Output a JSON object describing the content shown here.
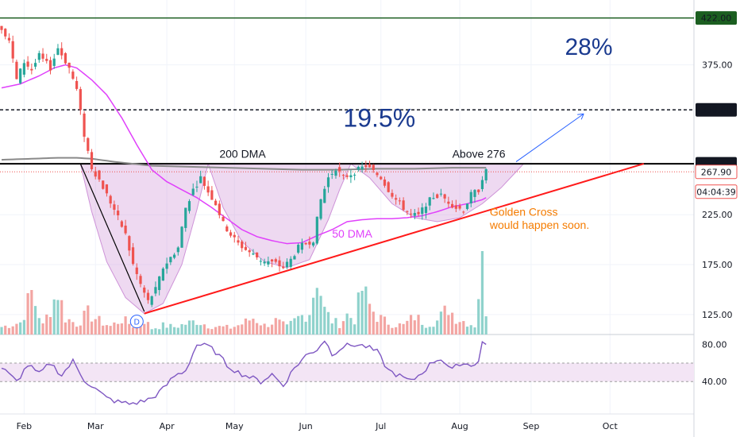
{
  "chart_data": {
    "type": "candlestick",
    "price_axis": {
      "ylim": [
        105,
        440
      ],
      "ticks": [
        125,
        175,
        225,
        375
      ],
      "tick_labels": [
        "125.00",
        "175.00",
        "225.00",
        "375.00"
      ]
    },
    "rsi_axis": {
      "ylim": [
        5,
        90
      ],
      "ticks": [
        40,
        80
      ],
      "tick_labels": [
        "40.00",
        "80.00"
      ],
      "band": [
        40,
        60
      ]
    },
    "x_axis": {
      "labels": [
        {
          "text": "Feb",
          "bar": 6
        },
        {
          "text": "Mar",
          "bar": 25
        },
        {
          "text": "Apr",
          "bar": 44
        },
        {
          "text": "May",
          "bar": 62
        },
        {
          "text": "Jun",
          "bar": 81
        },
        {
          "text": "Jul",
          "bar": 101
        },
        {
          "text": "Aug",
          "bar": 122
        },
        {
          "text": "Sep",
          "bar": 141
        },
        {
          "text": "Oct",
          "bar": 162
        }
      ],
      "total_bars": 185,
      "last_bar": 129
    },
    "price_anchors": [
      [
        0,
        412
      ],
      [
        2,
        400
      ],
      [
        4,
        360
      ],
      [
        6,
        378
      ],
      [
        8,
        370
      ],
      [
        10,
        384
      ],
      [
        13,
        372
      ],
      [
        15,
        392
      ],
      [
        18,
        372
      ],
      [
        20,
        350
      ],
      [
        22,
        305
      ],
      [
        24,
        272
      ],
      [
        26,
        260
      ],
      [
        28,
        245
      ],
      [
        30,
        230
      ],
      [
        33,
        205
      ],
      [
        35,
        175
      ],
      [
        37,
        155
      ],
      [
        39,
        138
      ],
      [
        41,
        150
      ],
      [
        43,
        172
      ],
      [
        45,
        182
      ],
      [
        47,
        192
      ],
      [
        49,
        232
      ],
      [
        51,
        250
      ],
      [
        53,
        262
      ],
      [
        55,
        248
      ],
      [
        57,
        236
      ],
      [
        59,
        216
      ],
      [
        61,
        205
      ],
      [
        63,
        196
      ],
      [
        65,
        190
      ],
      [
        67,
        185
      ],
      [
        69,
        180
      ],
      [
        71,
        178
      ],
      [
        73,
        176
      ],
      [
        75,
        172
      ],
      [
        77,
        180
      ],
      [
        79,
        192
      ],
      [
        81,
        196
      ],
      [
        83,
        200
      ],
      [
        85,
        240
      ],
      [
        87,
        262
      ],
      [
        89,
        272
      ],
      [
        91,
        262
      ],
      [
        93,
        266
      ],
      [
        95,
        270
      ],
      [
        97,
        274
      ],
      [
        99,
        268
      ],
      [
        101,
        262
      ],
      [
        103,
        250
      ],
      [
        105,
        240
      ],
      [
        107,
        232
      ],
      [
        109,
        225
      ],
      [
        111,
        224
      ],
      [
        113,
        236
      ],
      [
        115,
        243
      ],
      [
        117,
        244
      ],
      [
        119,
        238
      ],
      [
        121,
        232
      ],
      [
        123,
        230
      ],
      [
        125,
        245
      ],
      [
        127,
        250
      ],
      [
        128,
        262
      ],
      [
        129,
        268
      ]
    ],
    "volume_anchors": [
      [
        0,
        10
      ],
      [
        5,
        16
      ],
      [
        8,
        55
      ],
      [
        11,
        12
      ],
      [
        15,
        58
      ],
      [
        17,
        22
      ],
      [
        20,
        14
      ],
      [
        23,
        28
      ],
      [
        26,
        18
      ],
      [
        29,
        11
      ],
      [
        32,
        20
      ],
      [
        35,
        12
      ],
      [
        37,
        25
      ],
      [
        40,
        8
      ],
      [
        43,
        12
      ],
      [
        46,
        10
      ],
      [
        49,
        14
      ],
      [
        52,
        18
      ],
      [
        55,
        12
      ],
      [
        58,
        10
      ],
      [
        61,
        9
      ],
      [
        64,
        14
      ],
      [
        67,
        22
      ],
      [
        70,
        12
      ],
      [
        73,
        18
      ],
      [
        76,
        10
      ],
      [
        79,
        22
      ],
      [
        82,
        30
      ],
      [
        84,
        80
      ],
      [
        86,
        32
      ],
      [
        88,
        18
      ],
      [
        90,
        14
      ],
      [
        92,
        26
      ],
      [
        94,
        20
      ],
      [
        96,
        60
      ],
      [
        98,
        38
      ],
      [
        100,
        24
      ],
      [
        102,
        18
      ],
      [
        104,
        14
      ],
      [
        107,
        12
      ],
      [
        110,
        24
      ],
      [
        113,
        14
      ],
      [
        116,
        18
      ],
      [
        119,
        36
      ],
      [
        121,
        22
      ],
      [
        124,
        16
      ],
      [
        126,
        12
      ],
      [
        128,
        100
      ],
      [
        129,
        34
      ]
    ],
    "rsi_anchors": [
      [
        0,
        55
      ],
      [
        4,
        40
      ],
      [
        7,
        58
      ],
      [
        10,
        48
      ],
      [
        13,
        60
      ],
      [
        16,
        47
      ],
      [
        19,
        62
      ],
      [
        22,
        42
      ],
      [
        25,
        32
      ],
      [
        28,
        22
      ],
      [
        31,
        18
      ],
      [
        34,
        16
      ],
      [
        37,
        18
      ],
      [
        40,
        22
      ],
      [
        43,
        32
      ],
      [
        46,
        46
      ],
      [
        49,
        52
      ],
      [
        52,
        80
      ],
      [
        55,
        78
      ],
      [
        57,
        72
      ],
      [
        60,
        58
      ],
      [
        63,
        50
      ],
      [
        66,
        45
      ],
      [
        69,
        40
      ],
      [
        72,
        48
      ],
      [
        75,
        36
      ],
      [
        78,
        55
      ],
      [
        81,
        68
      ],
      [
        84,
        75
      ],
      [
        86,
        85
      ],
      [
        88,
        70
      ],
      [
        91,
        78
      ],
      [
        94,
        80
      ],
      [
        97,
        78
      ],
      [
        100,
        72
      ],
      [
        103,
        52
      ],
      [
        106,
        46
      ],
      [
        109,
        40
      ],
      [
        112,
        50
      ],
      [
        115,
        62
      ],
      [
        117,
        65
      ],
      [
        120,
        52
      ],
      [
        122,
        60
      ],
      [
        125,
        58
      ],
      [
        127,
        62
      ],
      [
        128,
        82
      ],
      [
        129,
        80
      ]
    ],
    "ma50_anchors": [
      [
        0,
        352
      ],
      [
        5,
        356
      ],
      [
        10,
        364
      ],
      [
        14,
        372
      ],
      [
        17,
        375
      ],
      [
        20,
        372
      ],
      [
        24,
        360
      ],
      [
        28,
        345
      ],
      [
        32,
        322
      ],
      [
        36,
        295
      ],
      [
        40,
        270
      ],
      [
        44,
        258
      ],
      [
        48,
        250
      ],
      [
        52,
        242
      ],
      [
        56,
        232
      ],
      [
        60,
        221
      ],
      [
        64,
        210
      ],
      [
        68,
        203
      ],
      [
        72,
        199
      ],
      [
        76,
        196
      ],
      [
        80,
        197
      ],
      [
        84,
        204
      ],
      [
        88,
        210
      ],
      [
        92,
        218
      ],
      [
        96,
        220
      ],
      [
        100,
        221
      ],
      [
        104,
        221
      ],
      [
        108,
        222
      ],
      [
        112,
        224
      ],
      [
        116,
        228
      ],
      [
        120,
        233
      ],
      [
        124,
        236
      ],
      [
        128,
        240
      ],
      [
        129,
        242
      ]
    ],
    "ma200_anchors": [
      [
        0,
        280
      ],
      [
        8,
        281
      ],
      [
        15,
        282
      ],
      [
        20,
        282
      ],
      [
        24,
        281
      ],
      [
        30,
        278
      ],
      [
        40,
        274
      ],
      [
        50,
        273
      ],
      [
        60,
        272
      ],
      [
        70,
        271
      ],
      [
        80,
        270
      ],
      [
        90,
        270
      ],
      [
        100,
        271
      ],
      [
        110,
        271
      ],
      [
        120,
        272
      ],
      [
        129,
        272
      ]
    ],
    "price_labels": [
      {
        "value": 422,
        "text": "422.00",
        "style": "green"
      },
      {
        "value": 330,
        "text": "330.00",
        "style": "dark"
      },
      {
        "value": 276,
        "text": "276.00",
        "style": "dark"
      },
      {
        "value": 267.9,
        "text": "267.90",
        "style": "red-outline"
      },
      {
        "value": 248,
        "text": "04:04:39",
        "style": "red-outline"
      }
    ],
    "levels": [
      {
        "value": 422,
        "color": "#1b5e20",
        "dash": false
      },
      {
        "value": 330,
        "color": "#131722",
        "dash": true
      },
      {
        "value": 276,
        "color": "#000000",
        "dash": false
      }
    ],
    "annotations": {
      "target_pct_1": "19.5%",
      "target_pct_2": "28%",
      "dma200_label": "200 DMA",
      "dma50_label": "50 DMA",
      "breakout_label": "Above 276",
      "note_line1": "Golden Cross",
      "note_line2": "would happen soon.",
      "marker": "D"
    },
    "colors": {
      "up": "#26a69a",
      "down": "#ef5350",
      "vol_up": "#8fd2cc",
      "vol_down": "#f3a5a2",
      "ma50": "#e040fb",
      "ma200": "#8a8a8a",
      "rsi": "#7e57c2",
      "pattern_fill": "#ce93d8",
      "trendline": "#ff1a1a",
      "arrow": "#2962ff",
      "pct_text": "#1a3a8f",
      "note_text": "#f57c00"
    }
  }
}
